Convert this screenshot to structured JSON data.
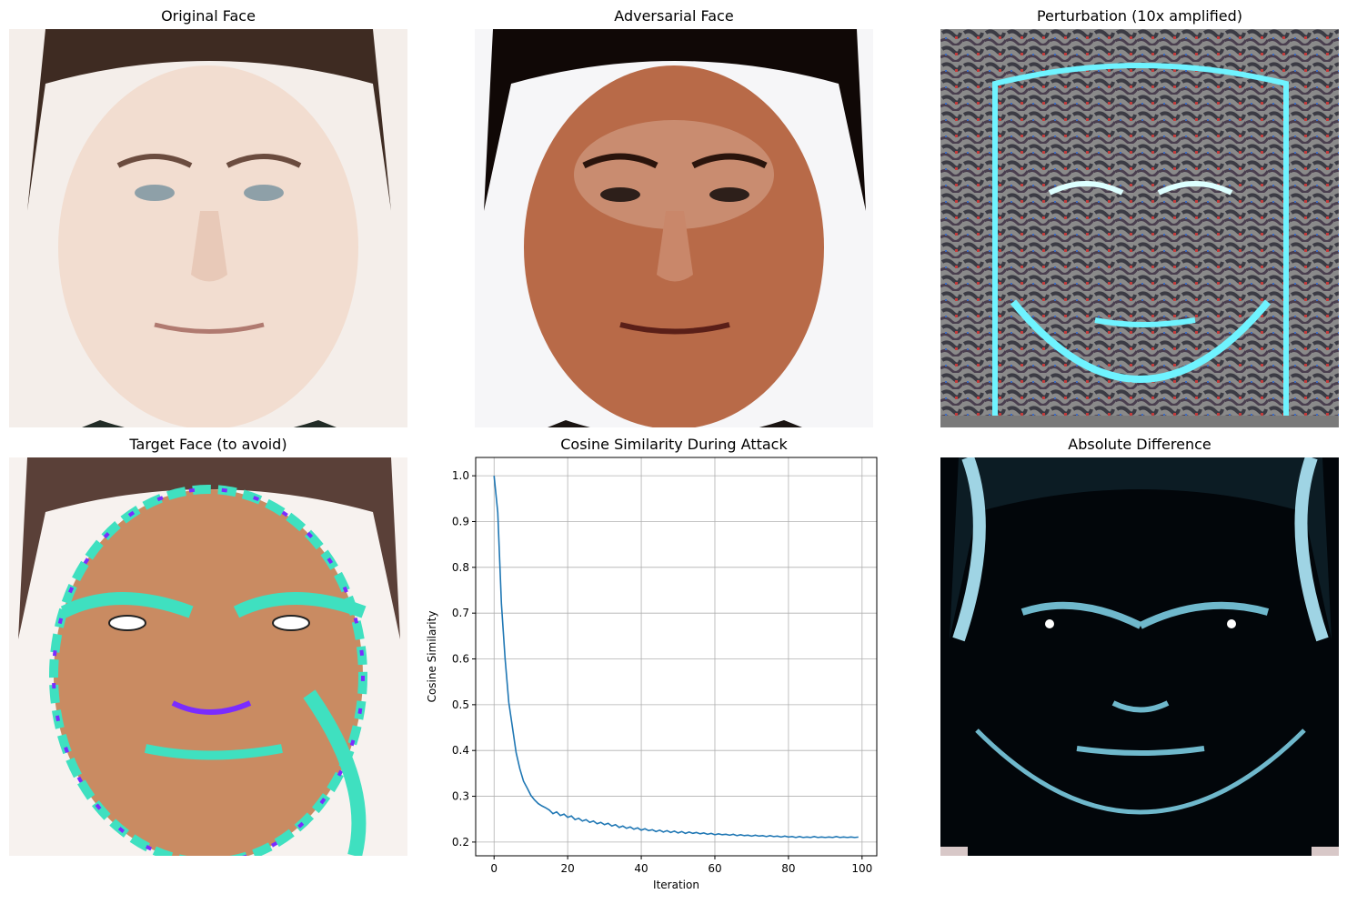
{
  "panels": {
    "original": {
      "title": "Original Face",
      "icon": "face-photo"
    },
    "adversarial": {
      "title": "Adversarial Face",
      "icon": "face-photo"
    },
    "perturbation": {
      "title": "Perturbation (10x amplified)",
      "icon": "noise-pattern"
    },
    "target": {
      "title": "Target Face (to avoid)",
      "icon": "face-photo"
    },
    "chart": {
      "title": "Cosine Similarity During Attack"
    },
    "difference": {
      "title": "Absolute Difference",
      "icon": "face-photo"
    }
  },
  "colors": {
    "line": "#1f77b4",
    "grid": "#b0b0b0",
    "skin_original": "#f2ddd0",
    "skin_adversarial": "#b86a48",
    "hair": "#3e2b22",
    "perturb_base": "#7a7a7a",
    "perturb_edge": "#6ff3ff",
    "difference_bg": "#02060a",
    "difference_edge": "#6fb8cc"
  },
  "chart_data": {
    "type": "line",
    "title": "Cosine Similarity During Attack",
    "xlabel": "Iteration",
    "ylabel": "Cosine Similarity",
    "xlim": [
      -5,
      104
    ],
    "ylim": [
      0.17,
      1.04
    ],
    "xticks": [
      0,
      20,
      40,
      60,
      80,
      100
    ],
    "yticks": [
      0.2,
      0.3,
      0.4,
      0.5,
      0.6,
      0.7,
      0.8,
      0.9,
      1.0
    ],
    "xtick_labels": [
      "0",
      "20",
      "40",
      "60",
      "80",
      "100"
    ],
    "ytick_labels": [
      "0.2",
      "0.3",
      "0.4",
      "0.5",
      "0.6",
      "0.7",
      "0.8",
      "0.9",
      "1.0"
    ],
    "grid": true,
    "series": [
      {
        "x": [
          0,
          1,
          2,
          3,
          4,
          5,
          6,
          7,
          8,
          9,
          10,
          11,
          12,
          13,
          14,
          15,
          16,
          17,
          18,
          19,
          20,
          21,
          22,
          23,
          24,
          25,
          26,
          27,
          28,
          29,
          30,
          31,
          32,
          33,
          34,
          35,
          36,
          37,
          38,
          39,
          40,
          41,
          42,
          43,
          44,
          45,
          46,
          47,
          48,
          49,
          50,
          51,
          52,
          53,
          54,
          55,
          56,
          57,
          58,
          59,
          60,
          61,
          62,
          63,
          64,
          65,
          66,
          67,
          68,
          69,
          70,
          71,
          72,
          73,
          74,
          75,
          76,
          77,
          78,
          79,
          80,
          81,
          82,
          83,
          84,
          85,
          86,
          87,
          88,
          89,
          90,
          91,
          92,
          93,
          94,
          95,
          96,
          97,
          98,
          99
        ],
        "y": [
          1.0,
          0.92,
          0.72,
          0.6,
          0.505,
          0.45,
          0.395,
          0.36,
          0.333,
          0.318,
          0.302,
          0.292,
          0.284,
          0.279,
          0.275,
          0.27,
          0.262,
          0.266,
          0.258,
          0.261,
          0.254,
          0.257,
          0.249,
          0.252,
          0.246,
          0.249,
          0.243,
          0.246,
          0.24,
          0.243,
          0.238,
          0.241,
          0.235,
          0.238,
          0.232,
          0.235,
          0.23,
          0.233,
          0.228,
          0.231,
          0.226,
          0.229,
          0.225,
          0.227,
          0.223,
          0.226,
          0.222,
          0.225,
          0.221,
          0.224,
          0.22,
          0.223,
          0.219,
          0.222,
          0.219,
          0.221,
          0.218,
          0.22,
          0.217,
          0.219,
          0.216,
          0.218,
          0.216,
          0.217,
          0.215,
          0.217,
          0.214,
          0.216,
          0.214,
          0.215,
          0.213,
          0.215,
          0.213,
          0.214,
          0.212,
          0.214,
          0.212,
          0.213,
          0.211,
          0.213,
          0.211,
          0.212,
          0.21,
          0.212,
          0.21,
          0.211,
          0.21,
          0.212,
          0.21,
          0.211,
          0.21,
          0.211,
          0.21,
          0.212,
          0.21,
          0.211,
          0.21,
          0.211,
          0.21,
          0.211
        ]
      }
    ]
  }
}
